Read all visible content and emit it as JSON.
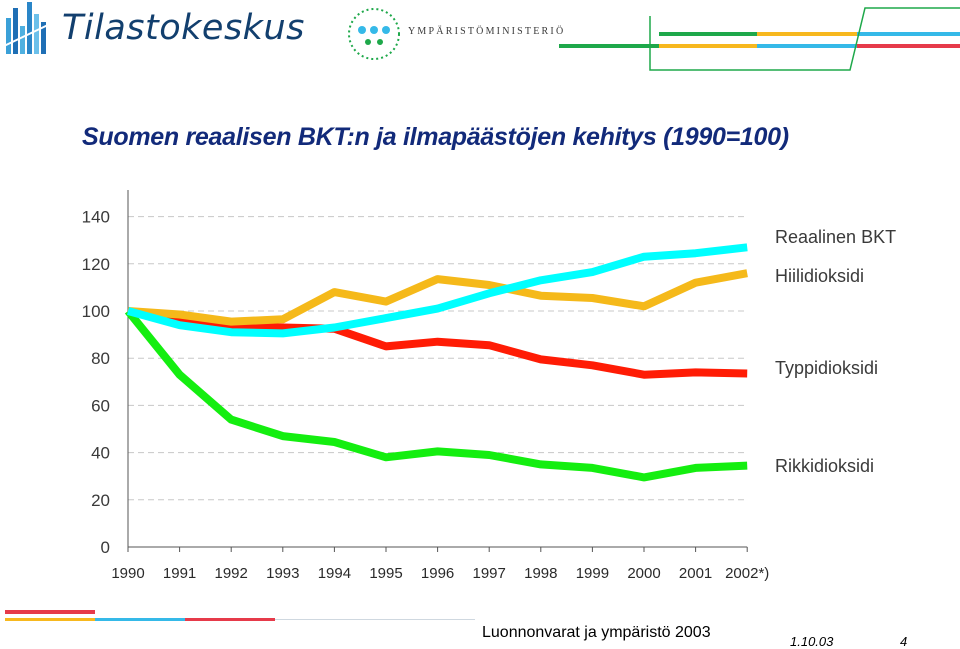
{
  "header": {
    "logo_text": "Tilastokeskus",
    "ministry_text": "YMPÄRISTÖMINISTERIÖ",
    "colors": {
      "green": "#1ea84a",
      "yellow": "#f7b81e",
      "blue": "#35b9e8",
      "red": "#e63a4a",
      "navy": "#123f6e"
    }
  },
  "chart_data": {
    "type": "line",
    "title": "Suomen reaalisen BKT:n ja ilmapäästöjen kehitys (1990=100)",
    "categories": [
      "1990",
      "1991",
      "1992",
      "1993",
      "1994",
      "1995",
      "1996",
      "1997",
      "1998",
      "1999",
      "2000",
      "2001",
      "2002*)"
    ],
    "yticks": [
      0,
      20,
      40,
      60,
      80,
      100,
      120,
      140
    ],
    "ylim": [
      0,
      150
    ],
    "grid": "dashed horizontal",
    "legend": "right, labels at line ends",
    "series": [
      {
        "name": "Reaalinen BKT",
        "color": "#00ffff",
        "values": [
          100,
          94,
          91,
          90.5,
          93,
          97,
          101,
          107.5,
          113,
          116.5,
          123,
          124.5,
          127
        ]
      },
      {
        "name": "Hiilidioksidi",
        "color": "#f5b91a",
        "values": [
          100,
          98.5,
          95.5,
          96.5,
          108,
          104,
          113.5,
          111,
          106.5,
          105.5,
          102,
          112,
          116
        ]
      },
      {
        "name": "Typpidioksidi",
        "color": "#ff1c05",
        "values": [
          100,
          96,
          93,
          93,
          92.5,
          85,
          87,
          85.5,
          79.5,
          77,
          73,
          74,
          73.5
        ]
      },
      {
        "name": "Rikkidioksidi",
        "color": "#14ee10",
        "values": [
          100,
          73,
          54,
          47,
          44.5,
          38,
          40.5,
          39,
          35,
          33.5,
          29.5,
          33.5,
          34.5
        ]
      }
    ]
  },
  "footer": {
    "center": "Luonnonvarat ja ympäristö 2003",
    "date": "1.10.03",
    "page": "4"
  }
}
